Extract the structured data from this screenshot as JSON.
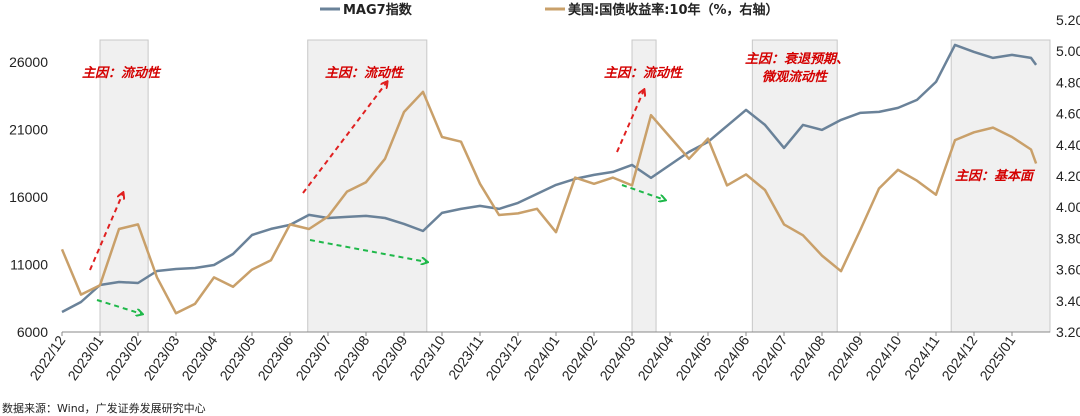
{
  "chart_data": {
    "type": "line",
    "title": "",
    "legend": {
      "placement": "top",
      "entries": [
        "MAG7指数",
        "美国:国债收益率:10年（%，右轴）"
      ]
    },
    "x_tick_labels": [
      "2022/12",
      "2023/01",
      "2023/02",
      "2023/03",
      "2023/04",
      "2023/05",
      "2023/06",
      "2023/07",
      "2023/08",
      "2023/09",
      "2023/10",
      "2023/11",
      "2023/12",
      "2024/01",
      "2024/02",
      "2024/03",
      "2024/04",
      "2024/05",
      "2024/06",
      "2024/07",
      "2024/08",
      "2024/09",
      "2024/10",
      "2024/11",
      "2024/12",
      "2025/01"
    ],
    "y_left": {
      "ticks": [
        6000,
        11000,
        16000,
        21000,
        26000
      ],
      "tick_labels": [
        "6000",
        "11000",
        "16000",
        "21000",
        "26000"
      ],
      "range": [
        6000,
        29100
      ]
    },
    "y_right": {
      "ticks": [
        3.2,
        3.4,
        3.6,
        3.8,
        4.0,
        4.2,
        4.4,
        4.6,
        4.8,
        5.0,
        5.2
      ],
      "tick_labels": [
        "3.20",
        "3.40",
        "3.60",
        "3.80",
        "4.00",
        "4.20",
        "4.40",
        "4.60",
        "4.80",
        "5.00",
        "5.20"
      ],
      "range": [
        3.2,
        5.2
      ]
    },
    "grid": false,
    "x": [
      "2022-12-01",
      "2022-12-16",
      "2023-01-01",
      "2023-01-16",
      "2023-02-01",
      "2023-02-16",
      "2023-03-01",
      "2023-03-16",
      "2023-04-01",
      "2023-04-16",
      "2023-05-01",
      "2023-05-16",
      "2023-06-01",
      "2023-06-16",
      "2023-07-01",
      "2023-07-16",
      "2023-08-01",
      "2023-08-16",
      "2023-09-01",
      "2023-09-16",
      "2023-10-01",
      "2023-10-16",
      "2023-11-01",
      "2023-11-16",
      "2023-12-01",
      "2023-12-16",
      "2024-01-01",
      "2024-01-16",
      "2024-02-01",
      "2024-02-16",
      "2024-03-01",
      "2024-03-16",
      "2024-04-01",
      "2024-04-16",
      "2024-05-01",
      "2024-05-16",
      "2024-06-01",
      "2024-06-16",
      "2024-07-01",
      "2024-07-16",
      "2024-08-01",
      "2024-08-16",
      "2024-09-01",
      "2024-09-16",
      "2024-10-01",
      "2024-10-16",
      "2024-11-01",
      "2024-11-16",
      "2024-12-01",
      "2024-12-16",
      "2025-01-01",
      "2025-01-16",
      "2025-01-20"
    ],
    "series": [
      {
        "name": "MAG7指数",
        "axis": "left",
        "color": "#6a8299",
        "values": [
          7481,
          8222,
          9481,
          9704,
          9630,
          10519,
          10667,
          10741,
          10963,
          11778,
          13185,
          13630,
          13926,
          14667,
          14444,
          14519,
          14593,
          14444,
          14000,
          13481,
          14815,
          15111,
          15333,
          15111,
          15556,
          16222,
          16889,
          17333,
          17630,
          17852,
          18370,
          17407,
          18370,
          19333,
          20074,
          21259,
          22444,
          21333,
          19630,
          21333,
          20963,
          21704,
          22222,
          22296,
          22593,
          23185,
          24519,
          27259,
          26741,
          26296,
          26519,
          26296,
          25778
        ]
      },
      {
        "name": "美国:国债收益率:10年（%，右轴）",
        "axis": "right",
        "color": "#c9a06a",
        "values": [
          3.73,
          3.44,
          3.5,
          3.86,
          3.89,
          3.55,
          3.32,
          3.38,
          3.55,
          3.49,
          3.6,
          3.66,
          3.89,
          3.86,
          3.94,
          4.1,
          4.16,
          4.31,
          4.61,
          4.74,
          4.45,
          4.42,
          4.15,
          3.95,
          3.96,
          3.99,
          3.84,
          4.19,
          4.15,
          4.19,
          4.14,
          4.59,
          4.45,
          4.31,
          4.44,
          4.14,
          4.21,
          4.11,
          3.89,
          3.82,
          3.69,
          3.59,
          3.85,
          4.12,
          4.24,
          4.17,
          4.08,
          4.43,
          4.48,
          4.51,
          4.45,
          4.37,
          4.28
        ]
      }
    ],
    "shaded_periods": [
      [
        "2023-01-01",
        "2023-02-09"
      ],
      [
        "2023-06-15",
        "2023-09-19"
      ],
      [
        "2024-03-01",
        "2024-03-20"
      ],
      [
        "2024-06-06",
        "2024-08-13"
      ],
      [
        "2024-11-13",
        "2025-02-01"
      ]
    ],
    "annotations": [
      {
        "text": "主因：流动性"
      },
      {
        "text": "主因：流动性"
      },
      {
        "text": "主因：流动性"
      },
      {
        "text": "主因：衰退预期、",
        "text2": "微观流动性"
      },
      {
        "text": "主因：基本面"
      }
    ],
    "annotation_colors": {
      "text": "#d40000",
      "up_arrow": "#e02020",
      "down_arrow": "#1fb84a",
      "shade": "#f0f0f0"
    }
  },
  "source": "数据来源：Wind，广发证券发展研究中心"
}
